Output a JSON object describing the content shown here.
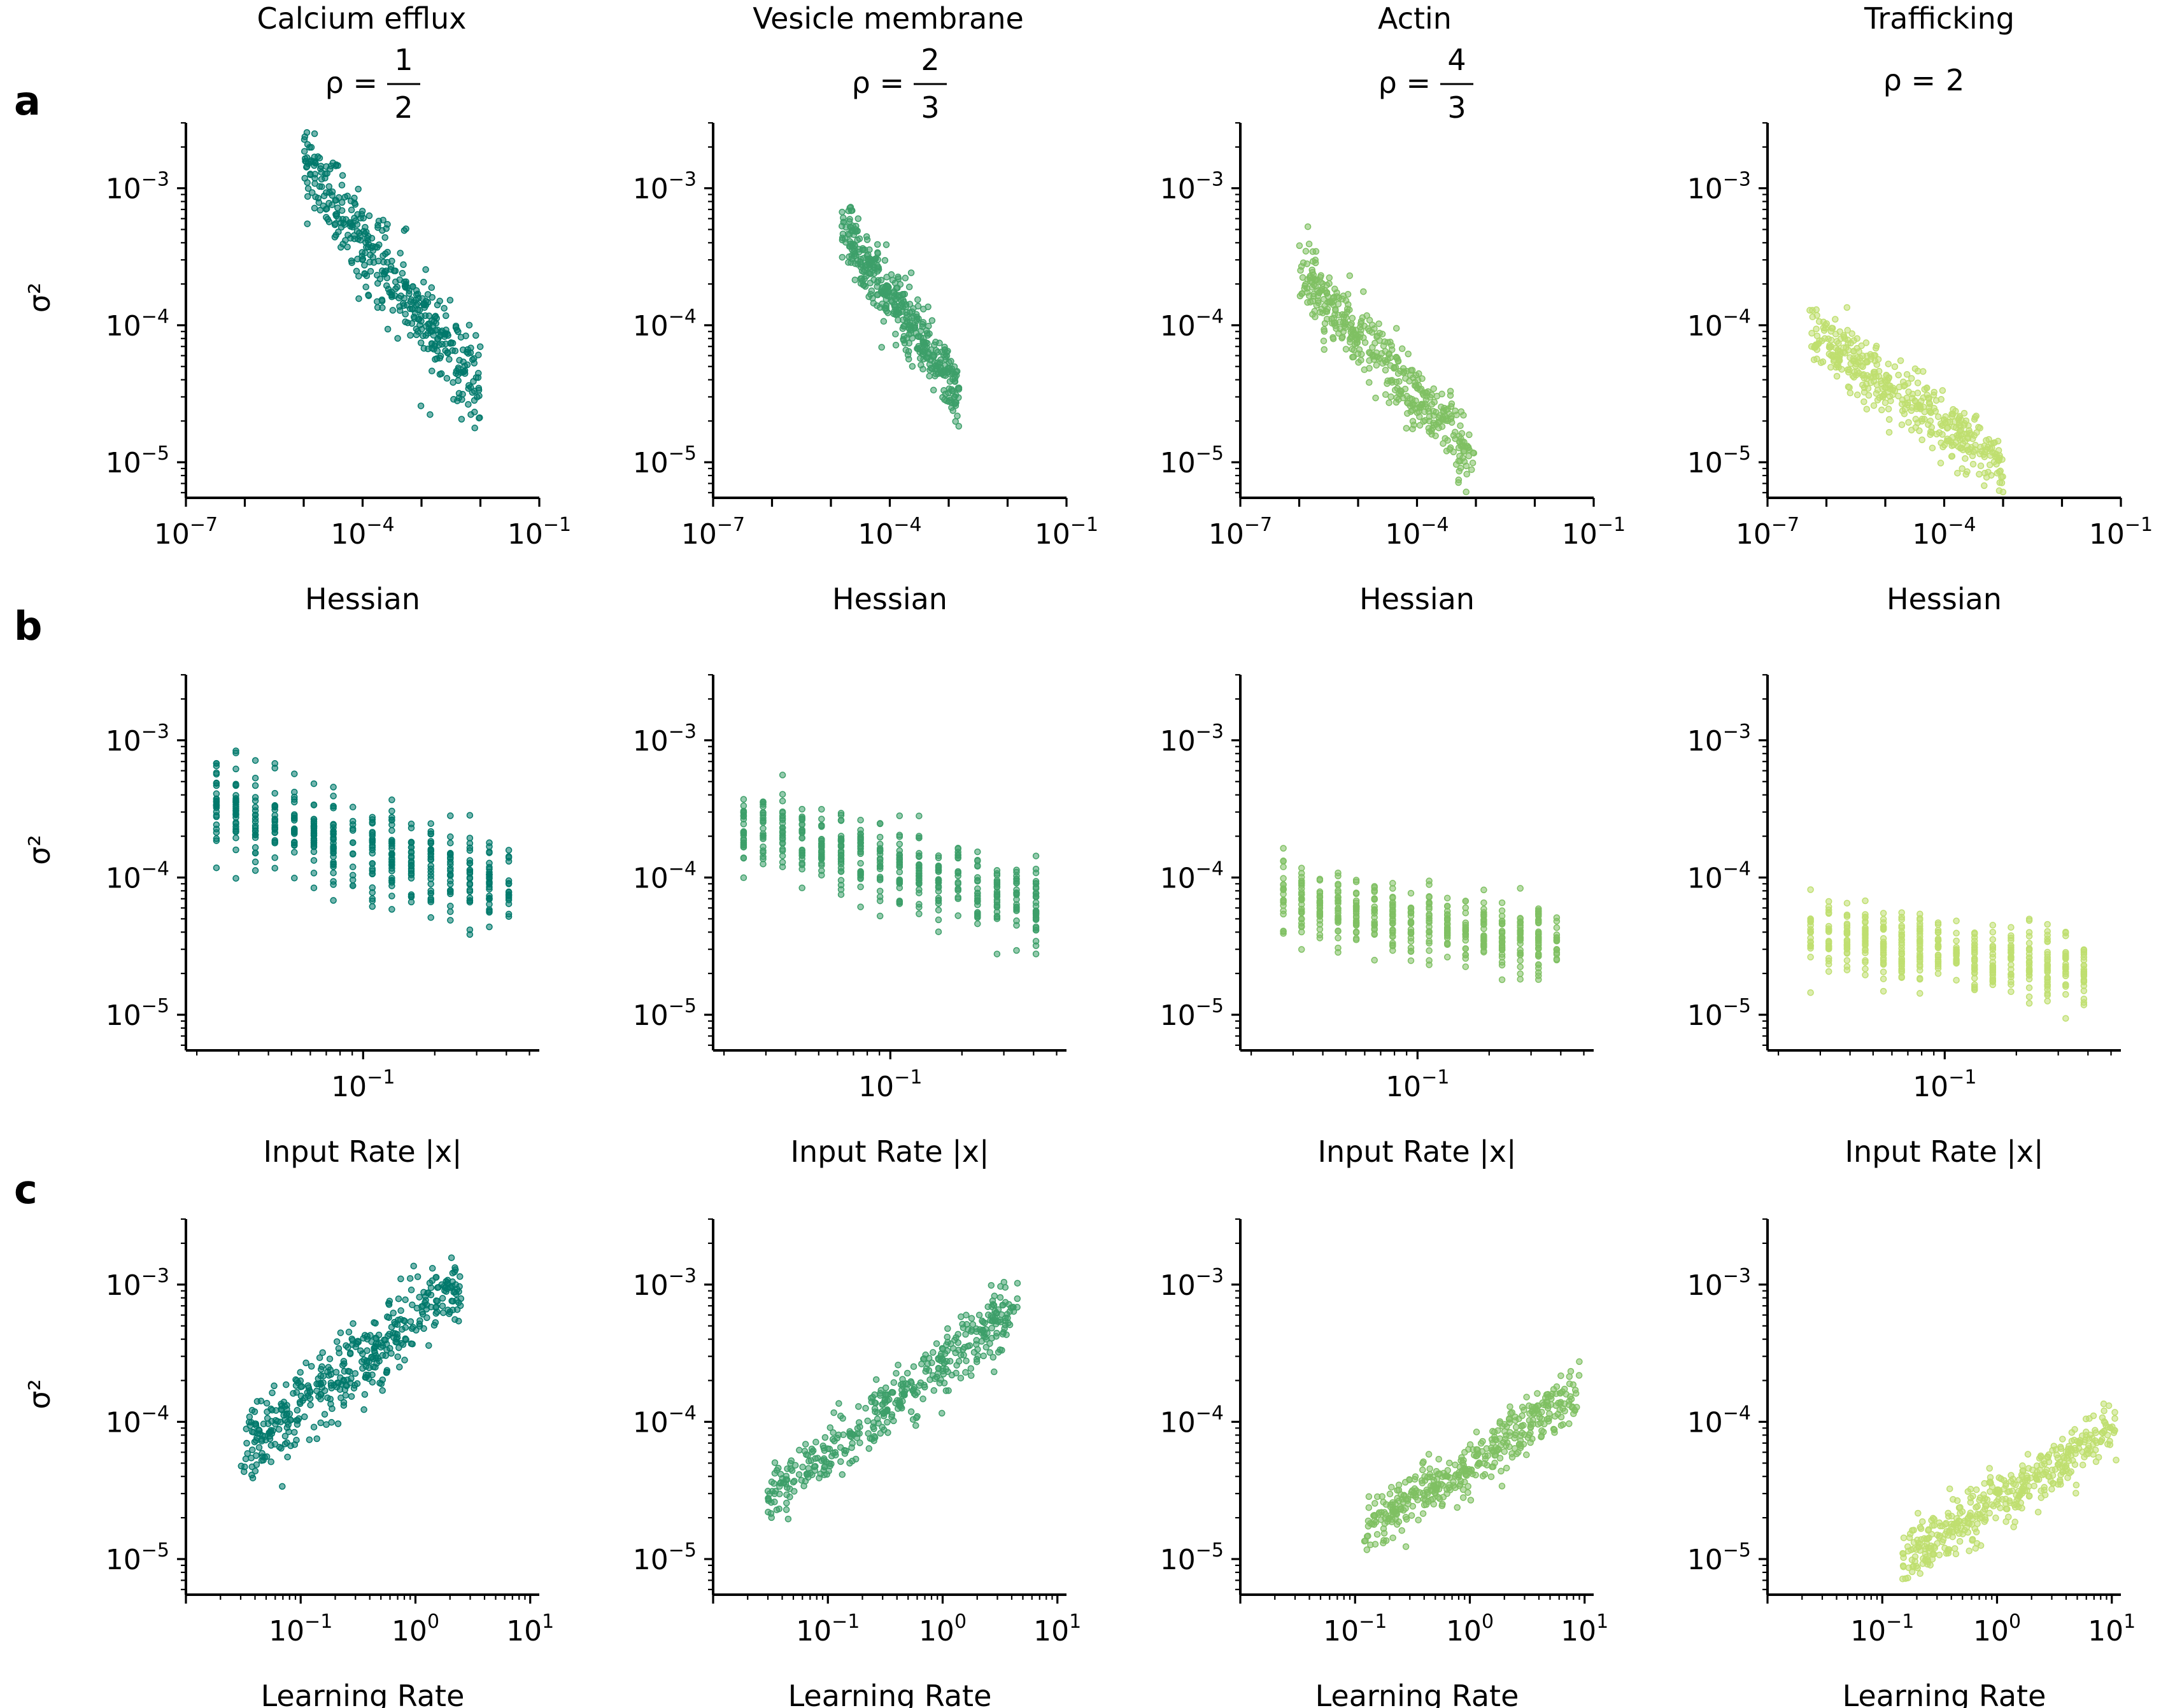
{
  "figure": {
    "panel_letters": [
      "a",
      "b",
      "c"
    ],
    "rho_label": "ρ =",
    "columns": [
      {
        "title": "Calcium efflux",
        "rho": {
          "numerator": "1",
          "denominator": "2",
          "text": ""
        },
        "color": "#00796b"
      },
      {
        "title": "Vesicle membrane",
        "rho": {
          "numerator": "2",
          "denominator": "3",
          "text": ""
        },
        "color": "#3d9f69"
      },
      {
        "title": "Actin",
        "rho": {
          "numerator": "4",
          "denominator": "3",
          "text": ""
        },
        "color": "#7fc062"
      },
      {
        "title": "Trafficking",
        "rho": {
          "numerator": "",
          "denominator": "",
          "text": "2"
        },
        "color": "#bfdf6f"
      }
    ]
  },
  "chart_data": [
    {
      "row": "a",
      "type": "scatter",
      "xscale": "log",
      "yscale": "log",
      "xlabel": "Hessian",
      "ylabel": "σ²",
      "xlim": [
        1e-07,
        0.1
      ],
      "ylim": [
        5.5e-06,
        0.003
      ],
      "xticks": [
        {
          "base": "10",
          "exp": "−7"
        },
        {
          "base": "10",
          "exp": "−4"
        },
        {
          "base": "10",
          "exp": "−1"
        }
      ],
      "yticks": [
        {
          "base": "10",
          "exp": "−5"
        },
        {
          "base": "10",
          "exp": "−4"
        },
        {
          "base": "10",
          "exp": "−3"
        }
      ],
      "series": [
        {
          "name": "Calcium efflux",
          "cloud": {
            "x_range": [
              1e-05,
              0.01
            ],
            "slope": -0.57,
            "y_at_center": 0.00023,
            "spread_decades": 0.16
          }
        },
        {
          "name": "Vesicle membrane",
          "cloud": {
            "x_range": [
              1.5e-05,
              0.0015
            ],
            "slope": -0.6,
            "y_at_center": 0.00013,
            "spread_decades": 0.12
          }
        },
        {
          "name": "Actin",
          "cloud": {
            "x_range": [
              1e-06,
              0.001
            ],
            "slope": -0.45,
            "y_at_center": 5e-05,
            "spread_decades": 0.12
          }
        },
        {
          "name": "Trafficking",
          "cloud": {
            "x_range": [
              5e-07,
              0.001
            ],
            "slope": -0.3,
            "y_at_center": 3e-05,
            "spread_decades": 0.11
          }
        }
      ]
    },
    {
      "row": "b",
      "type": "scatter",
      "xscale": "log",
      "yscale": "log",
      "xlabel": "Input Rate |x|",
      "ylabel": "σ²",
      "xlim": [
        0.018,
        0.55
      ],
      "ylim": [
        5.5e-06,
        0.003
      ],
      "xticks": [
        {
          "base": "10",
          "exp": "−1"
        }
      ],
      "yticks": [
        {
          "base": "10",
          "exp": "−5"
        },
        {
          "base": "10",
          "exp": "−4"
        },
        {
          "base": "10",
          "exp": "−3"
        }
      ],
      "series": [
        {
          "name": "Calcium efflux",
          "cloud": {
            "x_range": [
              0.022,
              0.45
            ],
            "y_start": 0.00035,
            "y_end": 8e-05,
            "spread_decades": 0.17
          }
        },
        {
          "name": "Vesicle membrane",
          "cloud": {
            "x_range": [
              0.022,
              0.45
            ],
            "y_start": 0.00026,
            "y_end": 6e-05,
            "spread_decades": 0.15
          }
        },
        {
          "name": "Actin",
          "cloud": {
            "x_range": [
              0.025,
              0.42
            ],
            "y_start": 7e-05,
            "y_end": 3.2e-05,
            "spread_decades": 0.13
          }
        },
        {
          "name": "Trafficking",
          "cloud": {
            "x_range": [
              0.025,
              0.42
            ],
            "y_start": 3.8e-05,
            "y_end": 2.1e-05,
            "spread_decades": 0.12
          }
        }
      ]
    },
    {
      "row": "c",
      "type": "scatter",
      "xscale": "log",
      "yscale": "log",
      "xlabel": "Learning Rate",
      "ylabel": "σ²",
      "xlim": [
        0.01,
        12
      ],
      "ylim": [
        5.5e-06,
        0.003
      ],
      "xticks": [
        {
          "base": "10",
          "exp": "−1"
        },
        {
          "base": "10",
          "exp": "0"
        },
        {
          "base": "10",
          "exp": "1"
        }
      ],
      "yticks": [
        {
          "base": "10",
          "exp": "−5"
        },
        {
          "base": "10",
          "exp": "−4"
        },
        {
          "base": "10",
          "exp": "−3"
        }
      ],
      "series": [
        {
          "name": "Calcium efflux",
          "cloud": {
            "x_range": [
              0.03,
              2.5
            ],
            "slope": 0.62,
            "y_at_center": 0.00024,
            "spread_decades": 0.14
          }
        },
        {
          "name": "Vesicle membrane",
          "cloud": {
            "x_range": [
              0.03,
              4.5
            ],
            "slope": 0.65,
            "y_at_center": 0.00014,
            "spread_decades": 0.11
          }
        },
        {
          "name": "Actin",
          "cloud": {
            "x_range": [
              0.12,
              9
            ],
            "slope": 0.55,
            "y_at_center": 5e-05,
            "spread_decades": 0.1
          }
        },
        {
          "name": "Trafficking",
          "cloud": {
            "x_range": [
              0.15,
              11
            ],
            "slope": 0.5,
            "y_at_center": 3e-05,
            "spread_decades": 0.1
          }
        }
      ]
    }
  ]
}
